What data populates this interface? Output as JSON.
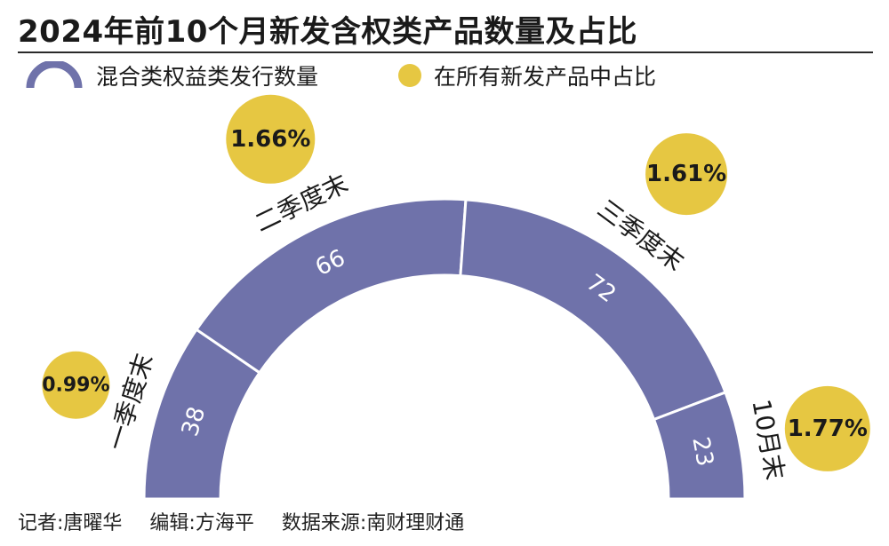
{
  "header": {
    "title": "2024年前10个月新发含权类产品数量及占比"
  },
  "legend": {
    "arc_label": "混合类权益类发行数量",
    "dot_label": "在所有新发产品中占比"
  },
  "colors": {
    "arc_fill": "#6f72aa",
    "dot_fill": "#e6c742",
    "arc_value_text": "#ffffff",
    "text": "#1a1a1a"
  },
  "chart_data": {
    "type": "donut",
    "categories": [
      "一季度末",
      "二季度末",
      "三季度末",
      "10月末"
    ],
    "series": [
      {
        "name": "混合类权益类发行数量",
        "values": [
          38,
          66,
          72,
          23
        ]
      },
      {
        "name": "在所有新发产品中占比",
        "values": [
          "0.99%",
          "1.66%",
          "1.61%",
          "1.77%"
        ]
      }
    ]
  },
  "footer": {
    "reporter": "记者:唐曜华",
    "editor": "编辑:方海平",
    "source": "数据来源:南财理财通"
  }
}
